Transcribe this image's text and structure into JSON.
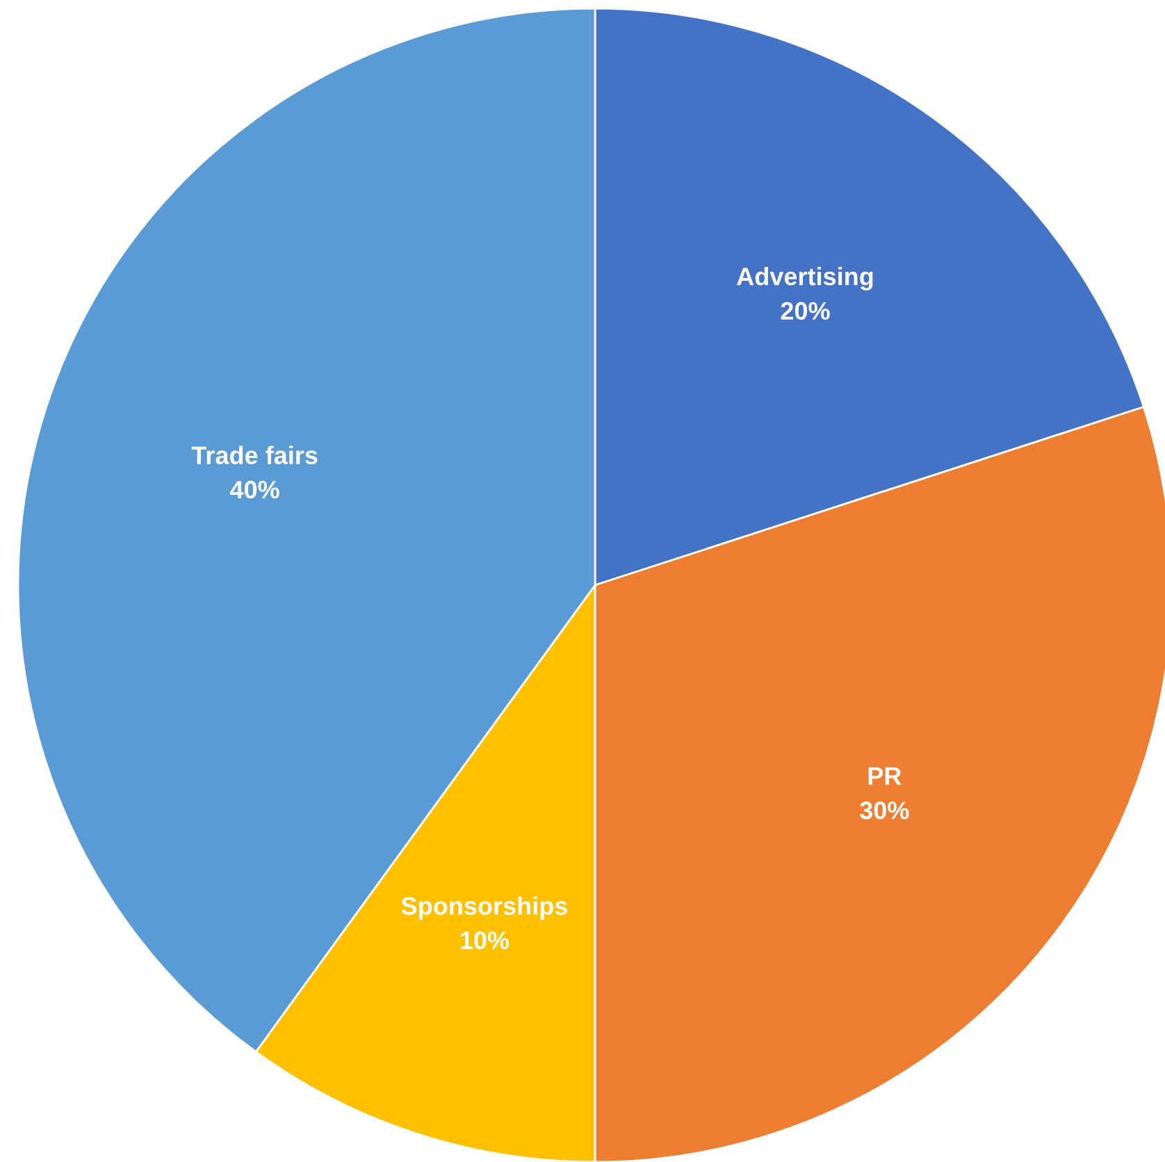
{
  "chart_data": {
    "type": "pie",
    "categories": [
      "Advertising",
      "PR",
      "Sponsorships",
      "Trade fairs"
    ],
    "values": [
      20,
      30,
      10,
      40
    ],
    "colors": [
      "#4472c4",
      "#ed7d31",
      "#ffc000",
      "#5b9bd5"
    ],
    "value_labels": [
      "20%",
      "30%",
      "10%",
      "40%"
    ],
    "legend": false
  }
}
